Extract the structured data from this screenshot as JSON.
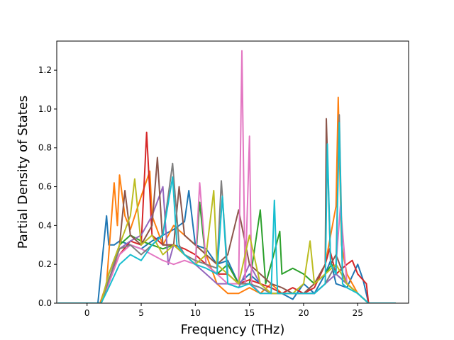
{
  "chart_data": {
    "type": "line",
    "title": "",
    "xlabel": "Frequency (THz)",
    "ylabel": "Partial Density of States",
    "xlim": [
      -2.8,
      29.7
    ],
    "ylim": [
      0.0,
      1.35
    ],
    "x_ticks": [
      0,
      5,
      10,
      15,
      20,
      25
    ],
    "y_ticks": [
      0.0,
      0.2,
      0.4,
      0.6,
      0.8,
      1.0,
      1.2
    ],
    "x_tick_labels": [
      "0",
      "5",
      "10",
      "15",
      "20",
      "25"
    ],
    "y_tick_labels": [
      "0.0",
      "0.2",
      "0.4",
      "0.6",
      "0.8",
      "1.0",
      "1.2"
    ],
    "grid": false,
    "legend": "none",
    "series": [
      {
        "color": "#1f77b4",
        "x": [
          -2.7,
          1.0,
          1.5,
          1.8,
          2.0,
          2.5,
          3.0,
          4.0,
          5.0,
          6.0,
          7.0,
          8.0,
          9.0,
          9.4,
          10.0,
          11.0,
          12.0,
          13.0,
          14.0,
          15.0,
          16.0,
          17.0,
          18.0,
          19.0,
          20.0,
          21.0,
          22.0,
          22.5,
          23.0,
          24.0,
          25.0,
          25.5,
          26.0,
          28.5
        ],
        "y": [
          0.0,
          0.0,
          0.28,
          0.45,
          0.3,
          0.3,
          0.32,
          0.3,
          0.28,
          0.32,
          0.35,
          0.38,
          0.42,
          0.58,
          0.3,
          0.28,
          0.2,
          0.22,
          0.1,
          0.15,
          0.1,
          0.05,
          0.05,
          0.02,
          0.1,
          0.05,
          0.15,
          0.22,
          0.1,
          0.08,
          0.2,
          0.12,
          0.0,
          0.0
        ]
      },
      {
        "color": "#ff7f0e",
        "x": [
          -2.7,
          1.2,
          1.8,
          2.5,
          2.8,
          3.0,
          3.5,
          4.0,
          5.0,
          5.8,
          6.0,
          7.0,
          8.0,
          9.0,
          10.0,
          11.0,
          12.0,
          13.0,
          14.0,
          15.0,
          16.0,
          17.0,
          18.0,
          19.0,
          20.0,
          21.0,
          22.0,
          23.0,
          23.2,
          23.5,
          24.0,
          25.0,
          26.0,
          28.5
        ],
        "y": [
          0.0,
          0.0,
          0.1,
          0.62,
          0.4,
          0.66,
          0.45,
          0.38,
          0.55,
          0.68,
          0.45,
          0.3,
          0.4,
          0.35,
          0.3,
          0.25,
          0.1,
          0.05,
          0.05,
          0.08,
          0.05,
          0.1,
          0.05,
          0.05,
          0.05,
          0.1,
          0.2,
          0.5,
          1.06,
          0.3,
          0.15,
          0.05,
          0.0,
          0.0
        ]
      },
      {
        "color": "#2ca02c",
        "x": [
          -2.7,
          1.3,
          2.0,
          3.0,
          4.0,
          5.0,
          6.0,
          7.0,
          8.0,
          9.0,
          10.0,
          10.4,
          11.0,
          12.0,
          13.0,
          14.0,
          15.0,
          16.0,
          16.5,
          17.0,
          17.8,
          18.0,
          19.0,
          20.0,
          21.0,
          22.0,
          22.6,
          23.0,
          24.0,
          25.0,
          26.0,
          28.5
        ],
        "y": [
          0.0,
          0.0,
          0.15,
          0.3,
          0.35,
          0.32,
          0.3,
          0.28,
          0.3,
          0.25,
          0.2,
          0.52,
          0.2,
          0.15,
          0.2,
          0.1,
          0.1,
          0.48,
          0.1,
          0.2,
          0.37,
          0.15,
          0.18,
          0.15,
          0.1,
          0.15,
          0.2,
          0.15,
          0.1,
          0.05,
          0.0,
          0.0
        ]
      },
      {
        "color": "#d62728",
        "x": [
          -2.7,
          1.3,
          2.0,
          3.0,
          4.0,
          5.0,
          5.5,
          6.0,
          7.0,
          8.0,
          9.0,
          10.0,
          11.0,
          12.0,
          13.0,
          14.0,
          15.0,
          16.0,
          17.0,
          18.0,
          19.0,
          20.0,
          21.0,
          22.0,
          22.4,
          23.0,
          24.0,
          24.5,
          25.0,
          25.8,
          26.0,
          28.5
        ],
        "y": [
          0.0,
          0.0,
          0.12,
          0.25,
          0.32,
          0.3,
          0.88,
          0.35,
          0.3,
          0.3,
          0.28,
          0.25,
          0.2,
          0.15,
          0.15,
          0.1,
          0.12,
          0.1,
          0.08,
          0.05,
          0.08,
          0.05,
          0.08,
          0.2,
          0.28,
          0.15,
          0.2,
          0.22,
          0.15,
          0.1,
          0.0,
          0.0
        ]
      },
      {
        "color": "#9467bd",
        "x": [
          -2.7,
          1.3,
          2.0,
          3.0,
          4.0,
          5.0,
          6.0,
          7.0,
          7.5,
          8.0,
          9.0,
          10.0,
          11.0,
          12.0,
          13.0,
          14.0,
          15.0,
          16.0,
          17.0,
          18.0,
          19.0,
          20.0,
          21.0,
          22.0,
          23.0,
          24.0,
          25.0,
          26.0,
          28.5
        ],
        "y": [
          0.0,
          0.0,
          0.15,
          0.28,
          0.32,
          0.35,
          0.45,
          0.6,
          0.2,
          0.3,
          0.25,
          0.2,
          0.15,
          0.1,
          0.1,
          0.08,
          0.2,
          0.1,
          0.05,
          0.05,
          0.05,
          0.05,
          0.05,
          0.1,
          0.15,
          0.1,
          0.05,
          0.0,
          0.0
        ]
      },
      {
        "color": "#8c564b",
        "x": [
          -2.7,
          1.3,
          2.0,
          3.0,
          3.5,
          4.0,
          5.0,
          6.0,
          6.5,
          7.0,
          8.0,
          8.5,
          9.0,
          10.0,
          11.0,
          12.0,
          13.0,
          14.0,
          15.0,
          16.0,
          17.0,
          18.0,
          19.0,
          20.0,
          21.0,
          22.0,
          22.1,
          22.5,
          23.0,
          24.0,
          25.0,
          26.0,
          28.5
        ],
        "y": [
          0.0,
          0.0,
          0.1,
          0.3,
          0.58,
          0.35,
          0.3,
          0.4,
          0.75,
          0.3,
          0.3,
          0.6,
          0.35,
          0.3,
          0.25,
          0.2,
          0.25,
          0.48,
          0.2,
          0.15,
          0.1,
          0.08,
          0.05,
          0.05,
          0.1,
          0.2,
          0.95,
          0.2,
          0.25,
          0.1,
          0.05,
          0.0,
          0.0
        ]
      },
      {
        "color": "#e377c2",
        "x": [
          -2.7,
          1.3,
          2.0,
          3.0,
          4.0,
          5.0,
          6.0,
          7.0,
          8.0,
          9.0,
          10.0,
          10.4,
          11.0,
          12.0,
          13.0,
          14.0,
          14.3,
          14.6,
          15.0,
          15.2,
          16.0,
          17.0,
          18.0,
          19.0,
          20.0,
          21.0,
          22.0,
          23.0,
          23.4,
          24.0,
          25.0,
          26.0,
          28.5
        ],
        "y": [
          0.0,
          0.0,
          0.1,
          0.25,
          0.3,
          0.28,
          0.25,
          0.22,
          0.2,
          0.22,
          0.2,
          0.62,
          0.2,
          0.15,
          0.1,
          0.1,
          1.3,
          0.1,
          0.86,
          0.1,
          0.05,
          0.05,
          0.05,
          0.05,
          0.05,
          0.05,
          0.1,
          0.2,
          0.5,
          0.1,
          0.05,
          0.0,
          0.0
        ]
      },
      {
        "color": "#7f7f7f",
        "x": [
          -2.7,
          1.3,
          2.0,
          3.0,
          4.0,
          5.0,
          6.0,
          7.0,
          7.9,
          8.5,
          9.0,
          10.0,
          11.0,
          12.0,
          12.4,
          13.0,
          14.0,
          15.0,
          16.0,
          17.0,
          18.0,
          19.0,
          20.0,
          21.0,
          22.0,
          23.0,
          23.3,
          23.6,
          24.0,
          25.0,
          26.0,
          28.5
        ],
        "y": [
          0.0,
          0.0,
          0.12,
          0.28,
          0.3,
          0.25,
          0.3,
          0.35,
          0.72,
          0.3,
          0.25,
          0.22,
          0.2,
          0.18,
          0.63,
          0.15,
          0.1,
          0.1,
          0.08,
          0.05,
          0.05,
          0.05,
          0.05,
          0.05,
          0.1,
          0.2,
          0.97,
          0.15,
          0.1,
          0.05,
          0.0,
          0.0
        ]
      },
      {
        "color": "#bcbd22",
        "x": [
          -2.7,
          1.3,
          2.0,
          3.0,
          4.0,
          4.4,
          5.0,
          6.0,
          7.0,
          8.0,
          9.0,
          10.0,
          11.0,
          11.7,
          12.0,
          13.0,
          14.0,
          15.0,
          16.0,
          17.0,
          18.0,
          19.0,
          20.0,
          20.6,
          21.0,
          22.0,
          23.0,
          24.0,
          25.0,
          26.0,
          28.5
        ],
        "y": [
          0.0,
          0.0,
          0.15,
          0.3,
          0.45,
          0.64,
          0.3,
          0.35,
          0.25,
          0.3,
          0.25,
          0.2,
          0.25,
          0.58,
          0.2,
          0.15,
          0.1,
          0.35,
          0.1,
          0.05,
          0.05,
          0.05,
          0.1,
          0.32,
          0.1,
          0.15,
          0.2,
          0.1,
          0.05,
          0.0,
          0.0
        ]
      },
      {
        "color": "#17becf",
        "x": [
          -2.7,
          1.3,
          2.0,
          3.0,
          4.0,
          5.0,
          6.0,
          7.0,
          7.9,
          8.3,
          9.0,
          10.0,
          11.0,
          12.0,
          12.5,
          13.0,
          14.0,
          15.0,
          16.0,
          17.0,
          17.3,
          17.6,
          18.0,
          19.0,
          20.0,
          21.0,
          22.0,
          22.2,
          22.5,
          23.0,
          23.3,
          23.6,
          24.0,
          25.0,
          26.0,
          28.5
        ],
        "y": [
          0.0,
          0.0,
          0.08,
          0.2,
          0.25,
          0.22,
          0.3,
          0.35,
          0.65,
          0.3,
          0.25,
          0.2,
          0.18,
          0.15,
          0.55,
          0.1,
          0.08,
          0.1,
          0.05,
          0.05,
          0.53,
          0.05,
          0.05,
          0.05,
          0.05,
          0.05,
          0.1,
          0.82,
          0.2,
          0.15,
          0.93,
          0.1,
          0.08,
          0.05,
          0.0,
          0.0
        ]
      }
    ]
  }
}
